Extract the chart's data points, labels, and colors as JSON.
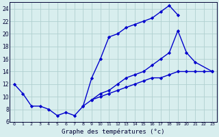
{
  "xlabel": "Graphe des températures (°c)",
  "bg_color": "#d8eeee",
  "grid_color": "#b0d0d0",
  "line_color": "#0000cc",
  "xlim": [
    -0.5,
    23.5
  ],
  "ylim": [
    6,
    25
  ],
  "xticks": [
    0,
    1,
    2,
    3,
    4,
    5,
    6,
    7,
    8,
    9,
    10,
    11,
    12,
    13,
    14,
    15,
    16,
    17,
    18,
    19,
    20,
    21,
    22,
    23
  ],
  "yticks": [
    6,
    8,
    10,
    12,
    14,
    16,
    18,
    20,
    22,
    24
  ],
  "line1_x": [
    0,
    1,
    2,
    3,
    4,
    5,
    6,
    7,
    8,
    9,
    10,
    11,
    12,
    13,
    14,
    15,
    16,
    17,
    18,
    19,
    20
  ],
  "line1_y": [
    12,
    10.5,
    8.5,
    8.5,
    8,
    7,
    7.5,
    7,
    8.5,
    13,
    16,
    19.5,
    20,
    21,
    21.5,
    22,
    22.5,
    23.5,
    24.5,
    23,
    null
  ],
  "line2_x": [
    8,
    9,
    10,
    11,
    12,
    13,
    14,
    15,
    16,
    17,
    18,
    19,
    20,
    21,
    23
  ],
  "line2_y": [
    8.5,
    9.5,
    10.5,
    11,
    12,
    13,
    13.5,
    14,
    15,
    16,
    17,
    20.5,
    17,
    15.5,
    14
  ],
  "line3_x": [
    9,
    10,
    11,
    12,
    13,
    14,
    15,
    16,
    17,
    18,
    19,
    20,
    21,
    22,
    23
  ],
  "line3_y": [
    9.5,
    10,
    10.5,
    11,
    11.5,
    12,
    12.5,
    13,
    13,
    13.5,
    14,
    14,
    14,
    14,
    14
  ]
}
